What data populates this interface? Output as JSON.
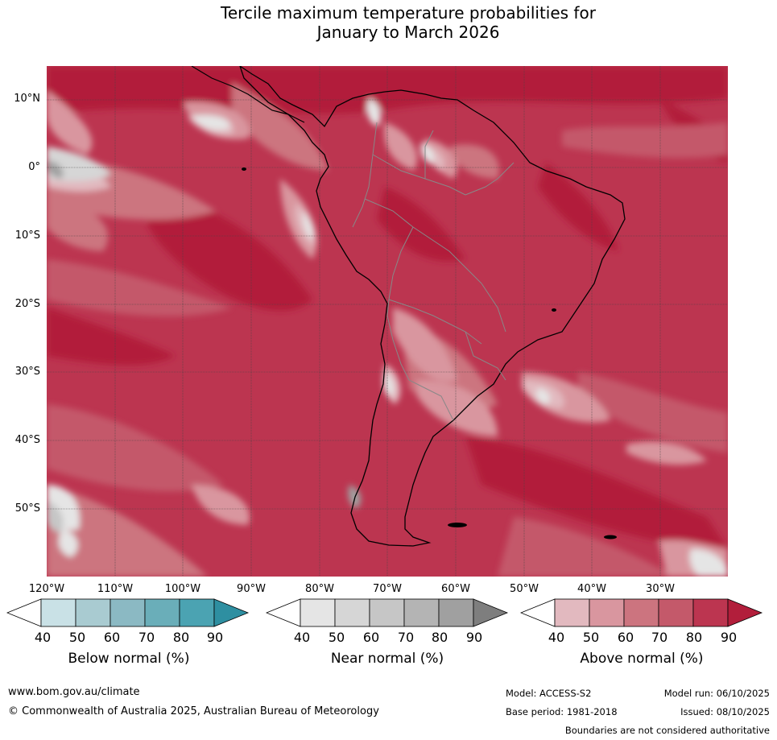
{
  "title_line1": "Tercile maximum temperature probabilities for",
  "title_line2": "January to March 2026",
  "map": {
    "lat_labels": [
      "10°N",
      "0°",
      "10°S",
      "20°S",
      "30°S",
      "40°S",
      "50°S"
    ],
    "lon_labels": [
      "120°W",
      "110°W",
      "100°W",
      "90°W",
      "80°W",
      "70°W",
      "60°W",
      "50°W",
      "40°W",
      "30°W"
    ],
    "dominant_category": "Above normal"
  },
  "colorbars": [
    {
      "title": "Below normal (%)",
      "ticks": [
        "40",
        "50",
        "60",
        "70",
        "80",
        "90"
      ],
      "colors": [
        "#ffffff",
        "#c9e1e6",
        "#a9cbd1",
        "#8bb9c3",
        "#6aaeb9",
        "#4ba3b2",
        "#2e8fa1"
      ]
    },
    {
      "title": "Near normal (%)",
      "ticks": [
        "40",
        "50",
        "60",
        "70",
        "80",
        "90"
      ],
      "colors": [
        "#ffffff",
        "#e5e5e5",
        "#d6d6d6",
        "#c6c6c6",
        "#b4b4b4",
        "#a0a0a0",
        "#7e7e7e"
      ]
    },
    {
      "title": "Above normal (%)",
      "ticks": [
        "40",
        "50",
        "60",
        "70",
        "80",
        "90"
      ],
      "colors": [
        "#ffffff",
        "#e2b9bf",
        "#d9969f",
        "#cc747f",
        "#c4596a",
        "#bc3550",
        "#b21e3b"
      ]
    }
  ],
  "footer": {
    "website": "www.bom.gov.au/climate",
    "copyright": "© Commonwealth of Australia 2025, Australian Bureau of Meteorology",
    "model": "Model: ACCESS-S2",
    "base_period": "Base period: 1981-2018",
    "model_run": "Model run: 06/10/2025",
    "issued": "Issued: 08/10/2025",
    "disclaimer": "Boundaries are not considered authoritative"
  }
}
